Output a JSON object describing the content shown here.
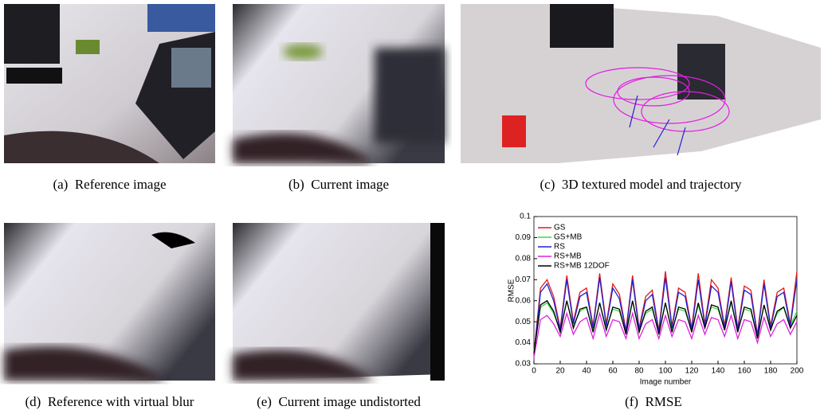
{
  "figure": {
    "captions": [
      "(a)  Reference image",
      "(b)  Current image",
      "(c)  3D textured model and trajectory",
      "(d)  Reference with virtual blur",
      "(e)  Current image undistorted",
      "(f)  RMSE"
    ]
  },
  "chart_data": {
    "type": "line",
    "xlabel": "Image number",
    "ylabel": "RMSE",
    "x": [
      0,
      5,
      10,
      15,
      20,
      25,
      30,
      35,
      40,
      45,
      50,
      55,
      60,
      65,
      70,
      75,
      80,
      85,
      90,
      95,
      100,
      105,
      110,
      115,
      120,
      125,
      130,
      135,
      140,
      145,
      150,
      155,
      160,
      165,
      170,
      175,
      180,
      185,
      190,
      195,
      200
    ],
    "series": [
      {
        "name": "GS",
        "color": "#e41a1c",
        "values": [
          0.035,
          0.066,
          0.07,
          0.062,
          0.047,
          0.072,
          0.05,
          0.064,
          0.066,
          0.048,
          0.073,
          0.049,
          0.068,
          0.063,
          0.046,
          0.072,
          0.047,
          0.062,
          0.065,
          0.046,
          0.074,
          0.048,
          0.066,
          0.064,
          0.047,
          0.073,
          0.049,
          0.07,
          0.066,
          0.048,
          0.071,
          0.047,
          0.067,
          0.065,
          0.044,
          0.07,
          0.048,
          0.064,
          0.066,
          0.049,
          0.074
        ]
      },
      {
        "name": "GS+MB",
        "color": "#33dd33",
        "values": [
          0.036,
          0.057,
          0.059,
          0.054,
          0.046,
          0.06,
          0.048,
          0.055,
          0.057,
          0.046,
          0.059,
          0.047,
          0.056,
          0.055,
          0.045,
          0.06,
          0.046,
          0.054,
          0.056,
          0.045,
          0.059,
          0.046,
          0.056,
          0.055,
          0.046,
          0.058,
          0.048,
          0.057,
          0.056,
          0.047,
          0.059,
          0.046,
          0.056,
          0.055,
          0.043,
          0.058,
          0.047,
          0.054,
          0.057,
          0.048,
          0.055
        ]
      },
      {
        "name": "RS",
        "color": "#2222cc",
        "values": [
          0.034,
          0.064,
          0.068,
          0.06,
          0.046,
          0.07,
          0.049,
          0.062,
          0.064,
          0.047,
          0.071,
          0.048,
          0.066,
          0.061,
          0.045,
          0.07,
          0.046,
          0.06,
          0.063,
          0.045,
          0.071,
          0.047,
          0.064,
          0.062,
          0.046,
          0.07,
          0.048,
          0.067,
          0.064,
          0.047,
          0.069,
          0.046,
          0.065,
          0.063,
          0.043,
          0.068,
          0.047,
          0.062,
          0.064,
          0.048,
          0.07
        ]
      },
      {
        "name": "RS+MB",
        "color": "#dd22dd",
        "values": [
          0.033,
          0.051,
          0.053,
          0.049,
          0.043,
          0.054,
          0.044,
          0.05,
          0.052,
          0.042,
          0.054,
          0.043,
          0.051,
          0.05,
          0.042,
          0.054,
          0.042,
          0.049,
          0.051,
          0.042,
          0.053,
          0.043,
          0.051,
          0.05,
          0.042,
          0.053,
          0.044,
          0.052,
          0.051,
          0.043,
          0.053,
          0.042,
          0.051,
          0.05,
          0.04,
          0.052,
          0.043,
          0.049,
          0.051,
          0.044,
          0.05
        ]
      },
      {
        "name": "RS+MB 12DOF",
        "color": "#000000",
        "values": [
          0.035,
          0.058,
          0.06,
          0.055,
          0.045,
          0.06,
          0.047,
          0.056,
          0.057,
          0.045,
          0.059,
          0.046,
          0.057,
          0.056,
          0.044,
          0.06,
          0.045,
          0.055,
          0.057,
          0.044,
          0.059,
          0.045,
          0.057,
          0.056,
          0.045,
          0.059,
          0.047,
          0.058,
          0.057,
          0.046,
          0.06,
          0.045,
          0.057,
          0.056,
          0.042,
          0.058,
          0.046,
          0.055,
          0.057,
          0.047,
          0.053
        ]
      }
    ],
    "xlim": [
      0,
      200
    ],
    "xticks": [
      0,
      20,
      40,
      60,
      80,
      100,
      120,
      140,
      160,
      180,
      200
    ],
    "ylim": [
      0.03,
      0.1
    ],
    "yticks": [
      0.03,
      0.04,
      0.05,
      0.06,
      0.07,
      0.08,
      0.09,
      0.1
    ],
    "grid": false,
    "legend": "upper left"
  }
}
